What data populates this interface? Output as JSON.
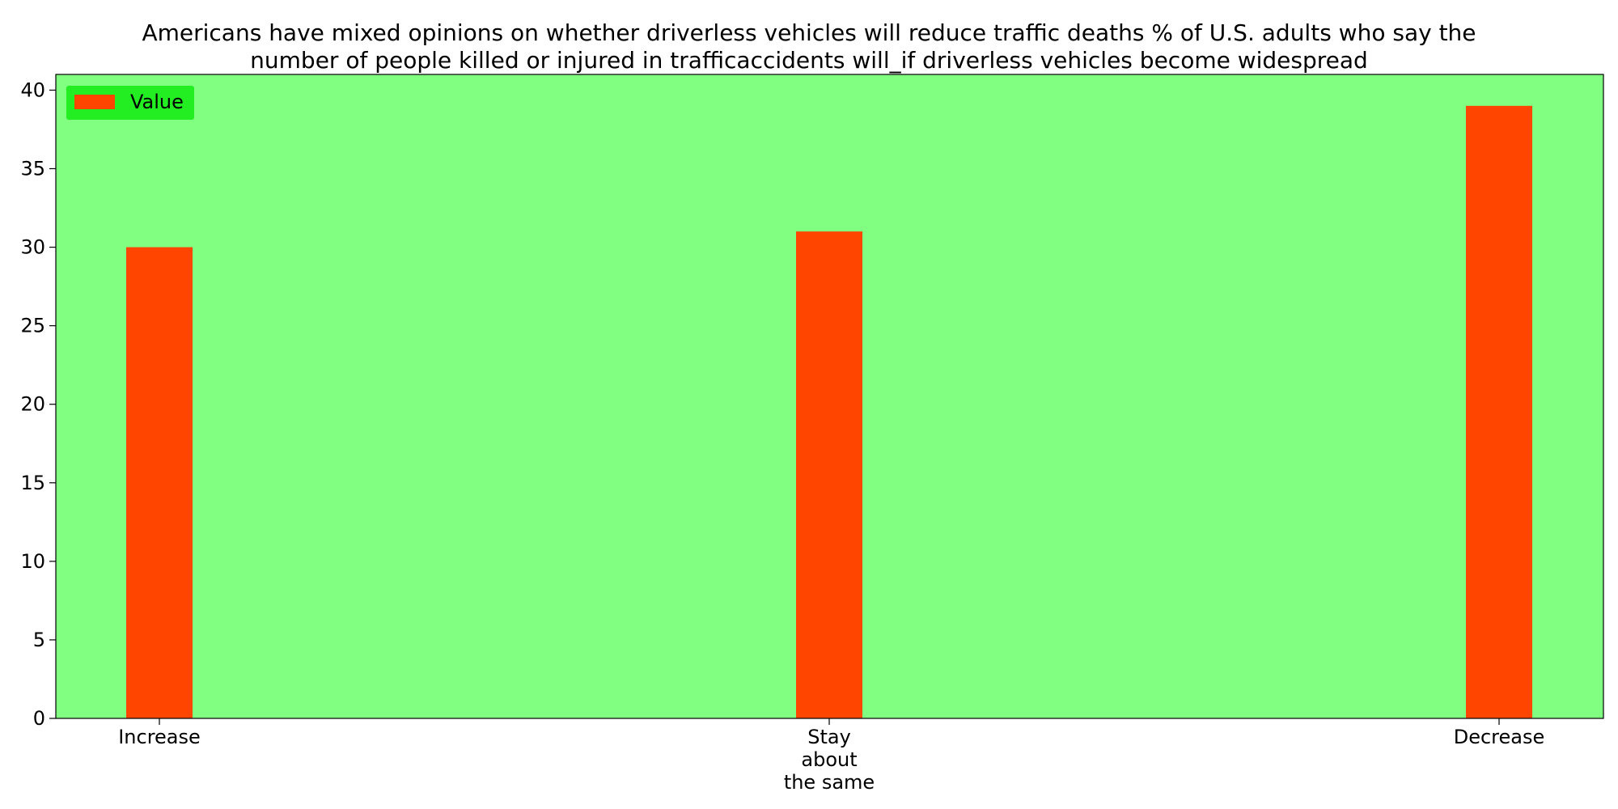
{
  "chart_data": {
    "type": "bar",
    "title": "Americans have mixed opinions on whether driverless vehicles will reduce traffic deaths % of U.S. adults who say the number of people killed or injured in trafficaccidents will_if driverless vehicles become widespread",
    "title_lines": [
      "Americans have mixed opinions on whether driverless vehicles will reduce traffic deaths % of U.S. adults who say the",
      "number of people killed or injured in trafficaccidents will_if driverless vehicles become widespread"
    ],
    "categories": [
      "Increase",
      "Stay about the same",
      "Decrease"
    ],
    "category_label_lines": [
      [
        "Increase"
      ],
      [
        "Stay",
        "about",
        "the same"
      ],
      [
        "Decrease"
      ]
    ],
    "series": [
      {
        "name": "Value",
        "values": [
          30,
          31,
          39
        ]
      }
    ],
    "xlabel": "",
    "ylabel": "",
    "ylim": [
      0,
      41
    ],
    "yticks": [
      0,
      5,
      10,
      15,
      20,
      25,
      30,
      35,
      40
    ],
    "grid": false,
    "legend_position": "top-left",
    "colors": {
      "bar": "#ff4500",
      "plot_background": "#80ff80",
      "legend_background": "#22ee22",
      "axis": "#000000"
    }
  }
}
